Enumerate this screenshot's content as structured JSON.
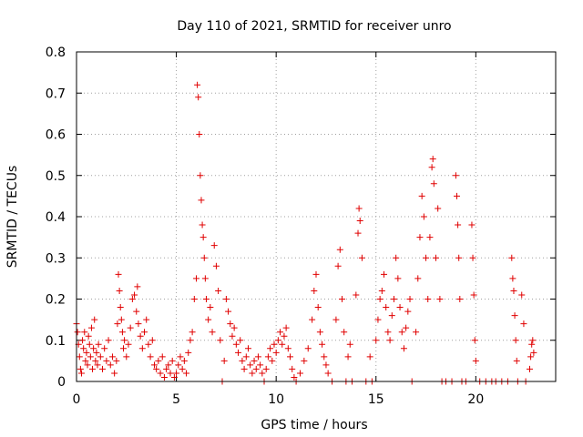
{
  "chart_data": {
    "type": "scatter",
    "title": "Day 110 of 2021, SRMTID for receiver unro",
    "xlabel": "GPS time / hours",
    "ylabel": "SRMTID / TECUs",
    "xlim": [
      0,
      24
    ],
    "ylim": [
      0,
      0.8
    ],
    "xticks": [
      0,
      5,
      10,
      15,
      20
    ],
    "yticks": [
      0,
      0.1,
      0.2,
      0.3,
      0.4,
      0.5,
      0.6,
      0.7,
      0.8
    ],
    "xtick_labels": [
      "0",
      "5",
      "10",
      "15",
      "20"
    ],
    "ytick_labels": [
      "0",
      "0.1",
      "0.2",
      "0.3",
      "0.4",
      "0.5",
      "0.6",
      "0.7",
      "0.8"
    ],
    "grid": true,
    "marker": "+",
    "color": "#e00000",
    "series": [
      {
        "name": "SRMTID",
        "points": [
          [
            0.0,
            0.14
          ],
          [
            0.05,
            0.12
          ],
          [
            0.1,
            0.09
          ],
          [
            0.15,
            0.06
          ],
          [
            0.2,
            0.03
          ],
          [
            0.25,
            0.02
          ],
          [
            0.3,
            0.1
          ],
          [
            0.35,
            0.08
          ],
          [
            0.4,
            0.12
          ],
          [
            0.45,
            0.05
          ],
          [
            0.5,
            0.07
          ],
          [
            0.55,
            0.04
          ],
          [
            0.6,
            0.11
          ],
          [
            0.65,
            0.09
          ],
          [
            0.7,
            0.06
          ],
          [
            0.75,
            0.13
          ],
          [
            0.8,
            0.03
          ],
          [
            0.85,
            0.08
          ],
          [
            0.9,
            0.15
          ],
          [
            0.95,
            0.05
          ],
          [
            1.0,
            0.07
          ],
          [
            1.05,
            0.04
          ],
          [
            1.1,
            0.09
          ],
          [
            1.2,
            0.06
          ],
          [
            1.3,
            0.03
          ],
          [
            1.4,
            0.08
          ],
          [
            1.5,
            0.05
          ],
          [
            1.6,
            0.1
          ],
          [
            1.7,
            0.04
          ],
          [
            1.8,
            0.06
          ],
          [
            1.9,
            0.02
          ],
          [
            2.0,
            0.05
          ],
          [
            2.05,
            0.14
          ],
          [
            2.1,
            0.26
          ],
          [
            2.15,
            0.22
          ],
          [
            2.2,
            0.18
          ],
          [
            2.25,
            0.15
          ],
          [
            2.3,
            0.12
          ],
          [
            2.35,
            0.08
          ],
          [
            2.4,
            0.1
          ],
          [
            2.5,
            0.06
          ],
          [
            2.6,
            0.09
          ],
          [
            2.7,
            0.13
          ],
          [
            2.8,
            0.2
          ],
          [
            2.9,
            0.21
          ],
          [
            3.0,
            0.17
          ],
          [
            3.05,
            0.23
          ],
          [
            3.1,
            0.14
          ],
          [
            3.2,
            0.11
          ],
          [
            3.3,
            0.08
          ],
          [
            3.4,
            0.12
          ],
          [
            3.5,
            0.15
          ],
          [
            3.6,
            0.09
          ],
          [
            3.7,
            0.06
          ],
          [
            3.8,
            0.1
          ],
          [
            3.9,
            0.04
          ],
          [
            4.0,
            0.03
          ],
          [
            4.1,
            0.05
          ],
          [
            4.2,
            0.02
          ],
          [
            4.3,
            0.06
          ],
          [
            4.4,
            0.01
          ],
          [
            4.5,
            0.03
          ],
          [
            4.6,
            0.04
          ],
          [
            4.7,
            0.02
          ],
          [
            4.8,
            0.05
          ],
          [
            4.9,
            0.01
          ],
          [
            5.0,
            0.02
          ],
          [
            5.1,
            0.04
          ],
          [
            5.2,
            0.06
          ],
          [
            5.3,
            0.03
          ],
          [
            5.4,
            0.05
          ],
          [
            5.5,
            0.02
          ],
          [
            5.6,
            0.07
          ],
          [
            5.7,
            0.1
          ],
          [
            5.8,
            0.12
          ],
          [
            5.9,
            0.2
          ],
          [
            6.0,
            0.25
          ],
          [
            6.05,
            0.72
          ],
          [
            6.1,
            0.69
          ],
          [
            6.15,
            0.6
          ],
          [
            6.2,
            0.5
          ],
          [
            6.25,
            0.44
          ],
          [
            6.3,
            0.38
          ],
          [
            6.35,
            0.35
          ],
          [
            6.4,
            0.3
          ],
          [
            6.45,
            0.25
          ],
          [
            6.5,
            0.2
          ],
          [
            6.6,
            0.15
          ],
          [
            6.7,
            0.18
          ],
          [
            6.8,
            0.12
          ],
          [
            6.9,
            0.33
          ],
          [
            7.0,
            0.28
          ],
          [
            7.1,
            0.22
          ],
          [
            7.2,
            0.1
          ],
          [
            7.3,
            0.0
          ],
          [
            7.4,
            0.05
          ],
          [
            7.5,
            0.2
          ],
          [
            7.6,
            0.17
          ],
          [
            7.7,
            0.14
          ],
          [
            7.8,
            0.11
          ],
          [
            7.9,
            0.13
          ],
          [
            8.0,
            0.09
          ],
          [
            8.1,
            0.07
          ],
          [
            8.2,
            0.1
          ],
          [
            8.3,
            0.05
          ],
          [
            8.4,
            0.03
          ],
          [
            8.5,
            0.06
          ],
          [
            8.6,
            0.08
          ],
          [
            8.7,
            0.04
          ],
          [
            8.8,
            0.02
          ],
          [
            8.9,
            0.05
          ],
          [
            9.0,
            0.03
          ],
          [
            9.1,
            0.06
          ],
          [
            9.2,
            0.04
          ],
          [
            9.3,
            0.02
          ],
          [
            9.4,
            0.0
          ],
          [
            9.5,
            0.03
          ],
          [
            9.6,
            0.06
          ],
          [
            9.7,
            0.08
          ],
          [
            9.8,
            0.05
          ],
          [
            9.9,
            0.09
          ],
          [
            10.0,
            0.07
          ],
          [
            10.1,
            0.1
          ],
          [
            10.2,
            0.12
          ],
          [
            10.3,
            0.09
          ],
          [
            10.4,
            0.11
          ],
          [
            10.5,
            0.13
          ],
          [
            10.6,
            0.08
          ],
          [
            10.7,
            0.06
          ],
          [
            10.8,
            0.03
          ],
          [
            10.9,
            0.01
          ],
          [
            11.0,
            0.0
          ],
          [
            11.2,
            0.02
          ],
          [
            11.4,
            0.05
          ],
          [
            11.6,
            0.08
          ],
          [
            11.8,
            0.15
          ],
          [
            11.9,
            0.22
          ],
          [
            12.0,
            0.26
          ],
          [
            12.1,
            0.18
          ],
          [
            12.2,
            0.12
          ],
          [
            12.3,
            0.09
          ],
          [
            12.4,
            0.06
          ],
          [
            12.5,
            0.04
          ],
          [
            12.6,
            0.02
          ],
          [
            12.8,
            0.0
          ],
          [
            13.0,
            0.15
          ],
          [
            13.1,
            0.28
          ],
          [
            13.2,
            0.32
          ],
          [
            13.3,
            0.2
          ],
          [
            13.4,
            0.12
          ],
          [
            13.5,
            0.0
          ],
          [
            13.6,
            0.06
          ],
          [
            13.7,
            0.09
          ],
          [
            13.8,
            0.0
          ],
          [
            14.0,
            0.21
          ],
          [
            14.1,
            0.36
          ],
          [
            14.15,
            0.42
          ],
          [
            14.2,
            0.39
          ],
          [
            14.3,
            0.3
          ],
          [
            14.5,
            0.0
          ],
          [
            14.7,
            0.06
          ],
          [
            14.8,
            0.0
          ],
          [
            15.0,
            0.1
          ],
          [
            15.1,
            0.15
          ],
          [
            15.2,
            0.2
          ],
          [
            15.3,
            0.22
          ],
          [
            15.4,
            0.26
          ],
          [
            15.5,
            0.18
          ],
          [
            15.6,
            0.12
          ],
          [
            15.7,
            0.1
          ],
          [
            15.8,
            0.16
          ],
          [
            15.9,
            0.2
          ],
          [
            16.0,
            0.3
          ],
          [
            16.1,
            0.25
          ],
          [
            16.2,
            0.18
          ],
          [
            16.3,
            0.12
          ],
          [
            16.4,
            0.08
          ],
          [
            16.5,
            0.13
          ],
          [
            16.6,
            0.17
          ],
          [
            16.7,
            0.2
          ],
          [
            16.8,
            0.0
          ],
          [
            17.0,
            0.12
          ],
          [
            17.1,
            0.25
          ],
          [
            17.2,
            0.35
          ],
          [
            17.3,
            0.45
          ],
          [
            17.4,
            0.4
          ],
          [
            17.5,
            0.3
          ],
          [
            17.6,
            0.2
          ],
          [
            17.7,
            0.35
          ],
          [
            17.8,
            0.52
          ],
          [
            17.85,
            0.54
          ],
          [
            17.9,
            0.48
          ],
          [
            18.0,
            0.3
          ],
          [
            18.1,
            0.42
          ],
          [
            18.2,
            0.2
          ],
          [
            18.3,
            0.0
          ],
          [
            18.5,
            0.0
          ],
          [
            18.8,
            0.0
          ],
          [
            19.0,
            0.5
          ],
          [
            19.05,
            0.45
          ],
          [
            19.1,
            0.38
          ],
          [
            19.15,
            0.3
          ],
          [
            19.2,
            0.2
          ],
          [
            19.3,
            0.0
          ],
          [
            19.5,
            0.0
          ],
          [
            19.8,
            0.38
          ],
          [
            19.85,
            0.3
          ],
          [
            19.9,
            0.21
          ],
          [
            19.95,
            0.1
          ],
          [
            20.0,
            0.05
          ],
          [
            20.2,
            0.0
          ],
          [
            20.5,
            0.0
          ],
          [
            20.8,
            0.0
          ],
          [
            21.0,
            0.0
          ],
          [
            21.3,
            0.0
          ],
          [
            21.6,
            0.0
          ],
          [
            21.8,
            0.3
          ],
          [
            21.85,
            0.25
          ],
          [
            21.9,
            0.22
          ],
          [
            21.95,
            0.16
          ],
          [
            22.0,
            0.1
          ],
          [
            22.05,
            0.05
          ],
          [
            22.1,
            0.0
          ],
          [
            22.3,
            0.21
          ],
          [
            22.4,
            0.14
          ],
          [
            22.5,
            0.0
          ],
          [
            22.7,
            0.03
          ],
          [
            22.75,
            0.06
          ],
          [
            22.8,
            0.09
          ],
          [
            22.85,
            0.1
          ],
          [
            22.9,
            0.07
          ]
        ]
      }
    ]
  }
}
